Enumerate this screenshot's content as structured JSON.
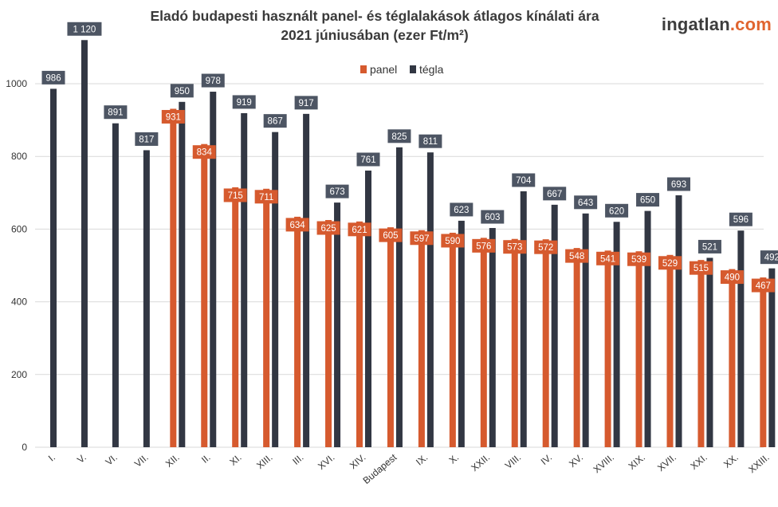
{
  "header": {
    "title_line1": "Eladó budapesti használt panel- és téglalakások átlagos kínálati ára",
    "title_line2": "2021 júniusában (ezer Ft/m²)",
    "brand_main": "ingatlan",
    "brand_tld": ".com"
  },
  "colors": {
    "panel": "#d65a2e",
    "tegla": "#323743",
    "panel_label_bg": "#d65a2e",
    "tegla_label_bg": "#4d5563",
    "grid": "#d9d9d9",
    "brand_accent": "#e0642f"
  },
  "chart_data": {
    "type": "bar",
    "title": "Eladó budapesti használt panel- és téglalakások átlagos kínálati ára 2021 júniusában (ezer Ft/m²)",
    "xlabel": "",
    "ylabel": "",
    "ylim": [
      0,
      1120
    ],
    "yticks": [
      0,
      200,
      400,
      600,
      800,
      1000
    ],
    "ytick_labels": [
      "0",
      "200",
      "400",
      "600",
      "800",
      "1000"
    ],
    "grid": true,
    "legend_position": "top-center",
    "categories": [
      "I.",
      "V.",
      "VI.",
      "VII.",
      "XII.",
      "II.",
      "XI.",
      "XIII.",
      "III.",
      "XVI.",
      "XIV.",
      "Budapest",
      "IX.",
      "X.",
      "XXII.",
      "VIII.",
      "IV.",
      "XV.",
      "XVIII.",
      "XIX.",
      "XVII.",
      "XXI.",
      "XX.",
      "XXIII."
    ],
    "series": [
      {
        "name": "panel",
        "values": [
          null,
          null,
          null,
          null,
          931,
          834,
          715,
          711,
          634,
          625,
          621,
          605,
          597,
          590,
          576,
          573,
          572,
          548,
          541,
          539,
          529,
          515,
          490,
          467
        ],
        "labels": [
          null,
          null,
          null,
          null,
          "931",
          "834",
          "715",
          "711",
          "634",
          "625",
          "621",
          "605",
          "597",
          "590",
          "576",
          "573",
          "572",
          "548",
          "541",
          "539",
          "529",
          "515",
          "490",
          "467"
        ]
      },
      {
        "name": "tégla",
        "values": [
          986,
          1120,
          891,
          817,
          950,
          978,
          919,
          867,
          917,
          673,
          761,
          825,
          811,
          623,
          603,
          704,
          667,
          643,
          620,
          650,
          693,
          521,
          596,
          492
        ],
        "labels": [
          "986",
          "1 120",
          "891",
          "817",
          "950",
          "978",
          "919",
          "867",
          "917",
          "673",
          "761",
          "825",
          "811",
          "623",
          "603",
          "704",
          "667",
          "643",
          "620",
          "650",
          "693",
          "521",
          "596",
          "492"
        ]
      }
    ]
  }
}
